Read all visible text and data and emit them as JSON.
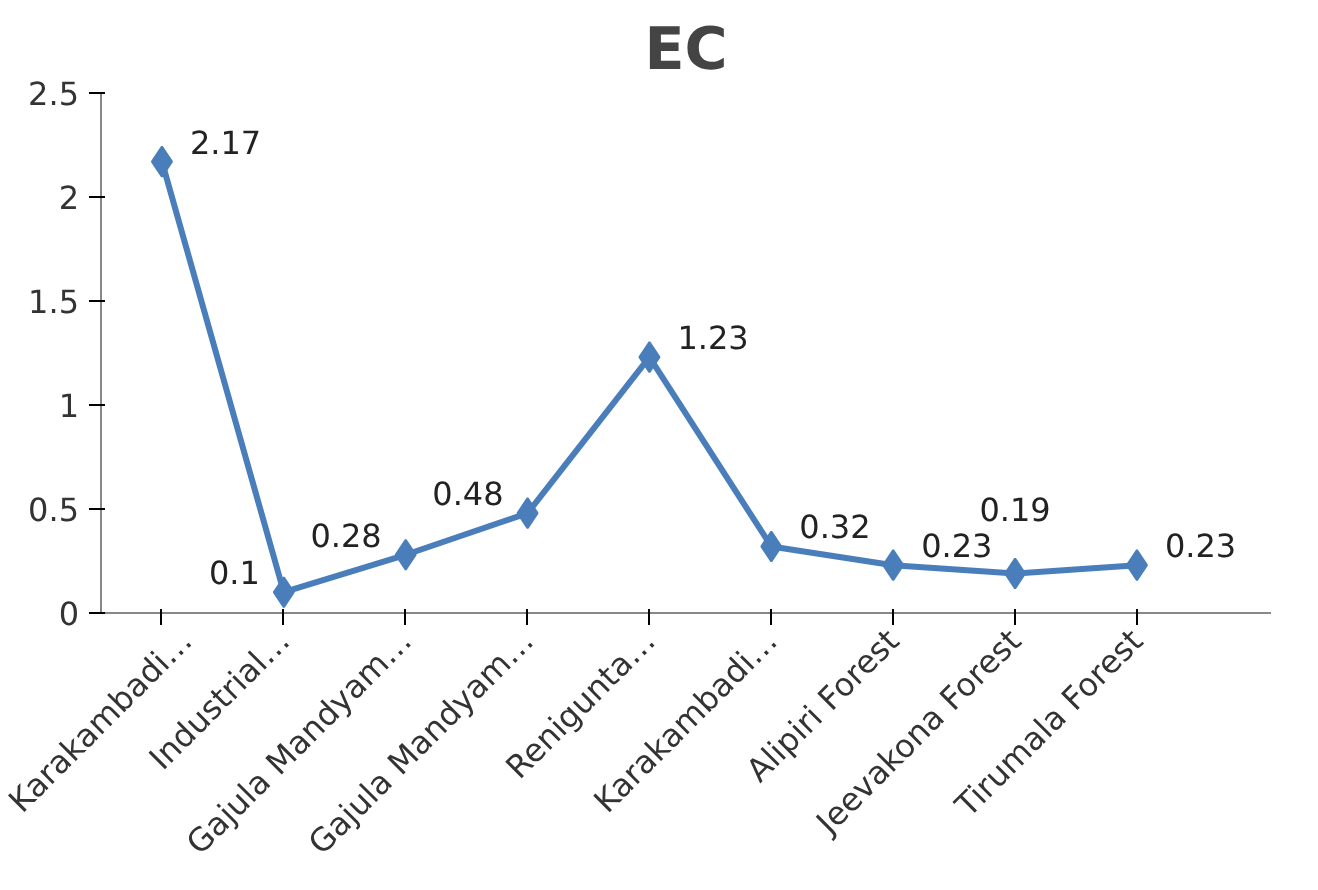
{
  "chart_data": {
    "type": "line",
    "title": "EC",
    "categories": [
      "Karakambadi…",
      "Industrial…",
      "Gajula Mandyam…",
      "Gajula Mandyam…",
      "Renigunta…",
      "Karakambadi…",
      "Alipiri Forest",
      "Jeevakona Forest",
      "Tirumala Forest"
    ],
    "series": [
      {
        "color": "#4a7ebb",
        "values": [
          2.17,
          0.1,
          0.28,
          0.48,
          1.23,
          0.32,
          0.23,
          0.19,
          0.23
        ]
      }
    ],
    "ylim": [
      0,
      2.5
    ],
    "yticks": [
      0,
      0.5,
      1,
      1.5,
      2,
      2.5
    ],
    "grid": false,
    "marker": "diamond",
    "line_style": "solid",
    "data_labels": true
  }
}
